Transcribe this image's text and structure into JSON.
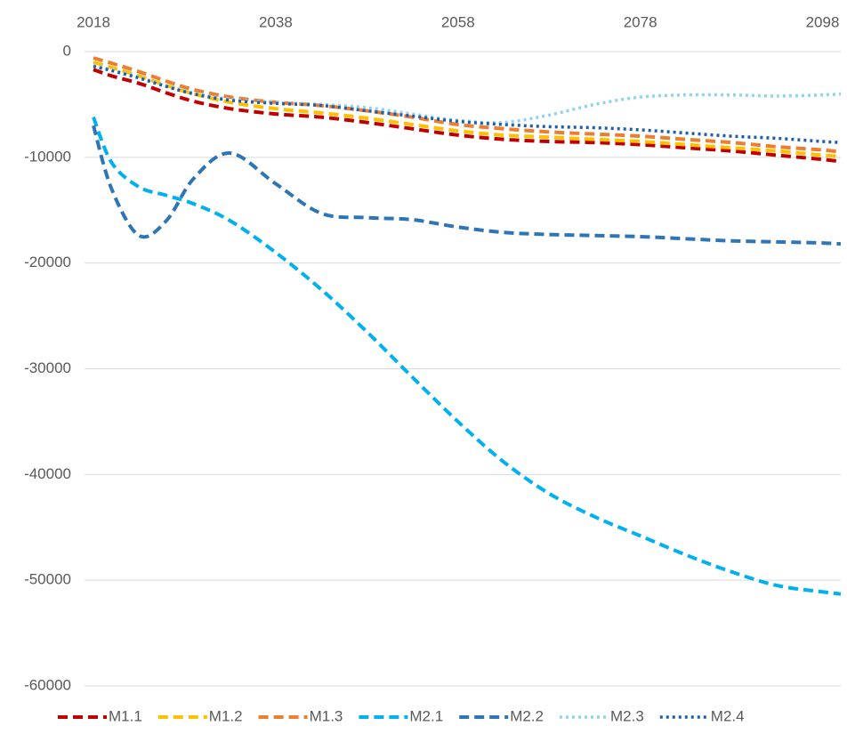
{
  "chart_data": {
    "type": "line",
    "x": [
      2018,
      2020,
      2023,
      2026,
      2029,
      2033,
      2038,
      2043,
      2048,
      2053,
      2058,
      2063,
      2068,
      2073,
      2078,
      2083,
      2088,
      2093,
      2098,
      2100
    ],
    "xlim": [
      2018,
      2100
    ],
    "xticks": [
      2018,
      2038,
      2058,
      2078,
      2098
    ],
    "ylim": [
      -60000,
      0
    ],
    "yticks": [
      0,
      -10000,
      -20000,
      -30000,
      -40000,
      -50000,
      -60000
    ],
    "grid": true,
    "legend": "bottom",
    "series": [
      {
        "name": "M1.1",
        "color": "#c00000",
        "style": "dashed",
        "values": [
          -1700,
          -2300,
          -3000,
          -3900,
          -4700,
          -5400,
          -5900,
          -6200,
          -6700,
          -7300,
          -7900,
          -8300,
          -8500,
          -8600,
          -8800,
          -9100,
          -9400,
          -9800,
          -10200,
          -10400
        ]
      },
      {
        "name": "M1.2",
        "color": "#ffc000",
        "style": "dashed",
        "values": [
          -1000,
          -1500,
          -2300,
          -3200,
          -4000,
          -4800,
          -5400,
          -5800,
          -6300,
          -6900,
          -7500,
          -7900,
          -8100,
          -8300,
          -8500,
          -8800,
          -9100,
          -9400,
          -9800,
          -9900
        ]
      },
      {
        "name": "M1.3",
        "color": "#ed7d31",
        "style": "dashed",
        "values": [
          -600,
          -1100,
          -1900,
          -2800,
          -3600,
          -4300,
          -4800,
          -5100,
          -5600,
          -6200,
          -6900,
          -7300,
          -7600,
          -7800,
          -8000,
          -8300,
          -8600,
          -9000,
          -9300,
          -9500
        ]
      },
      {
        "name": "M2.1",
        "color": "#00b0f0",
        "style": "dashed",
        "values": [
          -6200,
          -10500,
          -12800,
          -13600,
          -14400,
          -16000,
          -19000,
          -22500,
          -26500,
          -30800,
          -35000,
          -38800,
          -41800,
          -44000,
          -45800,
          -47600,
          -49200,
          -50500,
          -51100,
          -51300
        ]
      },
      {
        "name": "M2.2",
        "color": "#2e75b6",
        "style": "dashed",
        "values": [
          -7000,
          -13000,
          -17400,
          -16000,
          -12000,
          -9600,
          -12500,
          -15300,
          -15700,
          -15900,
          -16600,
          -17100,
          -17300,
          -17400,
          -17500,
          -17700,
          -17900,
          -18000,
          -18100,
          -18200
        ]
      },
      {
        "name": "M2.3",
        "color": "#8fd3f0",
        "style": "dotted",
        "values": [
          -1300,
          -1700,
          -2400,
          -3200,
          -3900,
          -4500,
          -4800,
          -5000,
          -5300,
          -5900,
          -6500,
          -6700,
          -6000,
          -5000,
          -4300,
          -4100,
          -4100,
          -4200,
          -4100,
          -4000
        ]
      },
      {
        "name": "M2.4",
        "color": "#1f5fa8",
        "style": "dotted",
        "values": [
          -1400,
          -1800,
          -2500,
          -3300,
          -4000,
          -4600,
          -4900,
          -5100,
          -5600,
          -6100,
          -6600,
          -6900,
          -7100,
          -7200,
          -7400,
          -7700,
          -8000,
          -8200,
          -8500,
          -8600
        ]
      }
    ]
  }
}
